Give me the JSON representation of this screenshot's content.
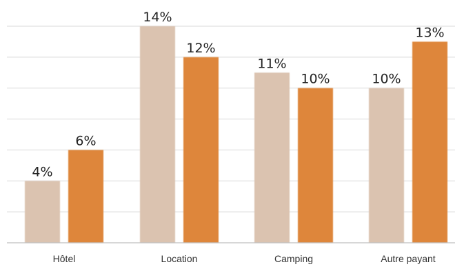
{
  "chart_data": {
    "type": "bar",
    "categories": [
      "Hôtel",
      "Location",
      "Camping",
      "Autre payant"
    ],
    "series": [
      {
        "values": [
          4,
          14,
          11,
          10
        ],
        "labels": [
          "4%",
          "14%",
          "11%",
          "10%"
        ],
        "color": "#dbc3b0"
      },
      {
        "values": [
          6,
          12,
          10,
          13
        ],
        "labels": [
          "6%",
          "12%",
          "10%",
          "13%"
        ],
        "color": "#de863a"
      }
    ],
    "ylim": [
      0,
      14
    ],
    "grid": true,
    "legend": "none"
  }
}
